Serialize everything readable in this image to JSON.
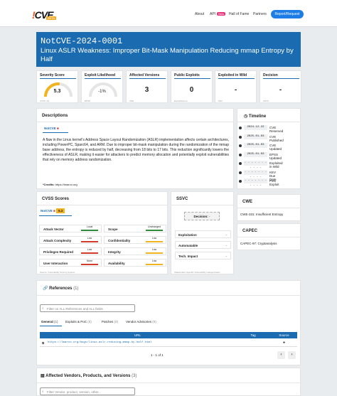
{
  "brand": {
    "logo_text": "CVE",
    "logo_prefix": "!",
    "logo_badge": "BETA"
  },
  "nav": {
    "about": "About",
    "api": "API",
    "api_badge": "New",
    "hall_of_fame": "Hall of Fame",
    "partners": "Partners",
    "report": "Report/Request"
  },
  "hero": {
    "id": "NotCVE-2024-0001",
    "title": "Linux ASLR Weakness: Improper Bit-Mask Manipulation Reducing mmap Entropy by Half"
  },
  "stats": [
    {
      "label": "Severity Score",
      "value": "5.3",
      "foot": "CVSS 4.0",
      "gauge": 0.53,
      "gauge_color": "#f2b41e"
    },
    {
      "label": "Exploit Likelihood",
      "value": "-1",
      "suffix": "%",
      "foot": "EPSS",
      "gauge": 0.0,
      "gauge_color": "#bbbbbb"
    },
    {
      "label": "Affected Versions",
      "value": "3",
      "foot": "CPE"
    },
    {
      "label": "Public Exploits",
      "value": "0",
      "foot": "ExploitSource"
    },
    {
      "label": "Exploited in Wild",
      "value": "-",
      "foot": "KEV"
    },
    {
      "label": "Decision",
      "value": "-",
      "foot": "SSVC"
    }
  ],
  "description": {
    "heading": "Descriptions",
    "tab": "NotCVE",
    "text": "A flaw in the Linux kernel's Address Space Layout Randomization (ASLR) implementation affects certain architectures, including PowerPC, Sparc64, and ARM. Due to improper bit-mask manipulation during the randomization of the mmap base address, the entropy is reduced by half, decreasing from 18 bits to 17 bits. This reduction significantly lowers the effectiveness of ASLR, making it easier for attackers to predict memory allocation and potentially exploit vulnerabilities that rely on memory address randomization.",
    "credits_label": "*Credits:",
    "credits_value": "https://lmarco.org"
  },
  "timeline": {
    "heading": "Timeline",
    "events": [
      {
        "date": "2024-12-22",
        "label": "CVE Reserved"
      },
      {
        "date": "2025-01-03",
        "label": "CVE Published"
      },
      {
        "date": "2025-01-03",
        "label": "CVE Updated"
      },
      {
        "date": "2025-01-03",
        "label": "EPSS Updated"
      },
      {
        "date": "- - - - - - - - - - -",
        "label": "Exploited in Wild"
      },
      {
        "date": "- - - - - - - - - - -",
        "label": "KEV Due Date"
      },
      {
        "date": "- - - - - - - - - - -",
        "label": "First Exploit"
      }
    ]
  },
  "cvss": {
    "heading": "CVSS Scores",
    "tab": "NotCVE",
    "tab_score": "5.3",
    "foot_left": "Source: Vulnerability Scoring System",
    "metrics": [
      {
        "key": "Attack Vector",
        "value": "Local",
        "color": "#2e8b3a"
      },
      {
        "key": "Scope",
        "value": "Unchanged",
        "color": "#2e8b3a"
      },
      {
        "key": "Attack Complexity",
        "value": "Low",
        "color": "#d43a2a"
      },
      {
        "key": "Confidentiality",
        "value": "Low",
        "color": "#f2b41e"
      },
      {
        "key": "Privileges Required",
        "value": "Low",
        "color": "#d43a2a"
      },
      {
        "key": "Integrity",
        "value": "Low",
        "color": "#f2b41e"
      },
      {
        "key": "User Interaction",
        "value": "None",
        "color": "#d43a2a"
      },
      {
        "key": "Availability",
        "value": "Low",
        "color": "#f2b41e"
      }
    ]
  },
  "ssvc": {
    "heading": "SSVC",
    "decision_label": "Decision:",
    "decision_value": "-",
    "foot": "Stakeholder-Specific Vulnerability Categorization",
    "rows": [
      {
        "key": "Exploitation",
        "value": "-"
      },
      {
        "key": "Automatable",
        "value": "-"
      },
      {
        "key": "Tech. Impact",
        "value": "-"
      }
    ]
  },
  "cwe": {
    "heading": "CWE",
    "item": "CWE-331: Insufficient Entropy"
  },
  "capec": {
    "heading": "CAPEC",
    "item": "CAPEC-97: Cryptanalysis"
  },
  "references": {
    "heading": "References",
    "count": "(1)",
    "search_placeholder": "Filter on ALL References and ALL fields",
    "tabs": [
      {
        "label": "General",
        "count": "(1)"
      },
      {
        "label": "Exploits & PoC",
        "count": "(0)"
      },
      {
        "label": "Patches",
        "count": "(0)"
      },
      {
        "label": "Vendor Advisories",
        "count": "(0)"
      }
    ],
    "columns": [
      "URL",
      "Tag",
      "Source"
    ],
    "rows": [
      {
        "url": "https://lmarco.org/bugs/linux-aslr-reducing-mmap-by-half.html",
        "tag": "",
        "source": "●"
      }
    ],
    "pagination": "1 - 1 of 1",
    "prev": "‹",
    "next": "›"
  },
  "affected": {
    "heading": "Affected Vendors, Products, and Versions",
    "count": "(3)",
    "search_placeholder": "Filter Vendor, product, version, other..."
  }
}
